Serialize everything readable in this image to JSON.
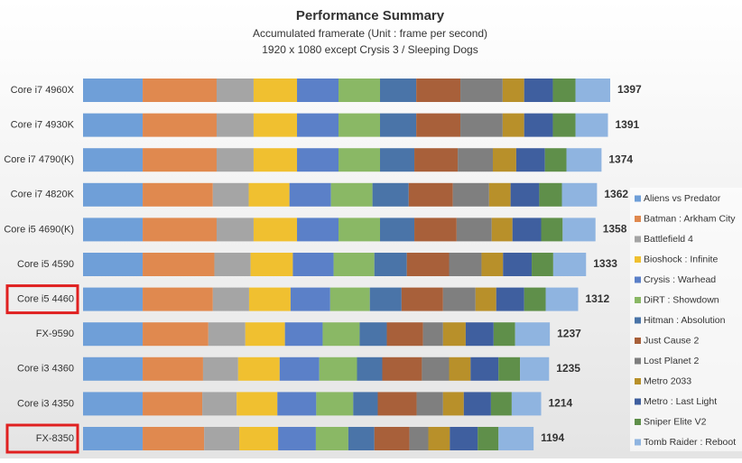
{
  "chart_data": {
    "type": "stacked-bar-horizontal",
    "title": "Performance Summary",
    "subtitle": [
      "Accumulated framerate (Unit : frame per second)",
      "1920  x 1080  except Crysis 3 / Sleeping Dogs"
    ],
    "categories": [
      "Core i7 4960X",
      "Core i7 4930K",
      "Core i7 4790(K)",
      "Core i7 4820K",
      "Core i5 4690(K)",
      "Core i5 4590",
      "Core i5 4460",
      "FX-9590",
      "Core i3 4360",
      "Core i3 4350",
      "FX-8350"
    ],
    "totals": [
      1397,
      1391,
      1374,
      1362,
      1358,
      1333,
      1312,
      1237,
      1235,
      1214,
      1194
    ],
    "highlighted": [
      6,
      10
    ],
    "legend": "right",
    "series": [
      {
        "name": "Aliens vs Predator",
        "color": "#6f9fd8",
        "values": [
          158,
          158,
          158,
          158,
          158,
          158,
          158,
          158,
          158,
          158,
          158
        ]
      },
      {
        "name": "Batman : Arkham City",
        "color": "#e0894f",
        "values": [
          196,
          196,
          196,
          186,
          196,
          190,
          186,
          174,
          160,
          158,
          163
        ]
      },
      {
        "name": "Battlefield 4",
        "color": "#a5a5a5",
        "values": [
          98,
          98,
          98,
          95,
          98,
          96,
          96,
          98,
          93,
          91,
          93
        ]
      },
      {
        "name": "Bioshock : Infinite",
        "color": "#f0c030",
        "values": [
          115,
          115,
          115,
          108,
          115,
          112,
          110,
          105,
          110,
          108,
          103
        ]
      },
      {
        "name": "Crysis : Warhead",
        "color": "#5b80c8",
        "values": [
          110,
          110,
          110,
          110,
          110,
          108,
          105,
          100,
          105,
          103,
          100
        ]
      },
      {
        "name": "DiRT : Showdown",
        "color": "#8ab865",
        "values": [
          110,
          110,
          110,
          110,
          110,
          108,
          105,
          98,
          100,
          98,
          86
        ]
      },
      {
        "name": "Hitman : Absolution",
        "color": "#4a74a8",
        "values": [
          96,
          96,
          91,
          96,
          91,
          86,
          84,
          72,
          67,
          65,
          69
        ]
      },
      {
        "name": "Just Cause 2",
        "color": "#a8603a",
        "values": [
          117,
          117,
          115,
          117,
          112,
          112,
          110,
          96,
          105,
          103,
          93
        ]
      },
      {
        "name": "Lost Planet 2",
        "color": "#7f7f7f",
        "values": [
          112,
          112,
          93,
          96,
          93,
          86,
          86,
          53,
          72,
          70,
          50
        ]
      },
      {
        "name": "Metro 2033",
        "color": "#b8902a",
        "values": [
          57,
          57,
          62,
          57,
          55,
          57,
          55,
          60,
          57,
          55,
          57
        ]
      },
      {
        "name": "Metro : Last Light",
        "color": "#3f5f9f",
        "values": [
          76,
          76,
          76,
          76,
          76,
          76,
          74,
          74,
          74,
          72,
          74
        ]
      },
      {
        "name": "Sniper Elite V2",
        "color": "#5f8f4a",
        "values": [
          60,
          60,
          57,
          60,
          57,
          57,
          57,
          57,
          57,
          55,
          55
        ]
      },
      {
        "name": "Tomb Raider : Reboot",
        "color": "#8fb4e0",
        "values": [
          92,
          86,
          93,
          93,
          87,
          87,
          86,
          92,
          77,
          78,
          93
        ]
      }
    ]
  }
}
